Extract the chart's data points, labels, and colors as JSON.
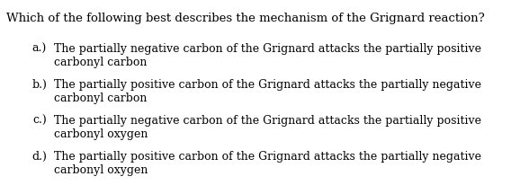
{
  "background_color": "#ffffff",
  "question": "Which of the following best describes the mechanism of the Grignard reaction?",
  "options": [
    {
      "label": "a.)",
      "line1": "The partially negative carbon of the Grignard attacks the partially positive",
      "line2": "carbonyl carbon"
    },
    {
      "label": "b.)",
      "line1": "The partially positive carbon of the Grignard attacks the partially negative",
      "line2": "carbonyl carbon"
    },
    {
      "label": "c.)",
      "line1": "The partially negative carbon of the Grignard attacks the partially positive",
      "line2": "carbonyl oxygen"
    },
    {
      "label": "d.)",
      "line1": "The partially positive carbon of the Grignard attacks the partially negative",
      "line2": "carbonyl oxygen"
    }
  ],
  "question_fontsize": 9.5,
  "option_fontsize": 9.0,
  "font_family": "DejaVu Serif",
  "text_color": "#000000",
  "background_color_fig": "#ffffff"
}
